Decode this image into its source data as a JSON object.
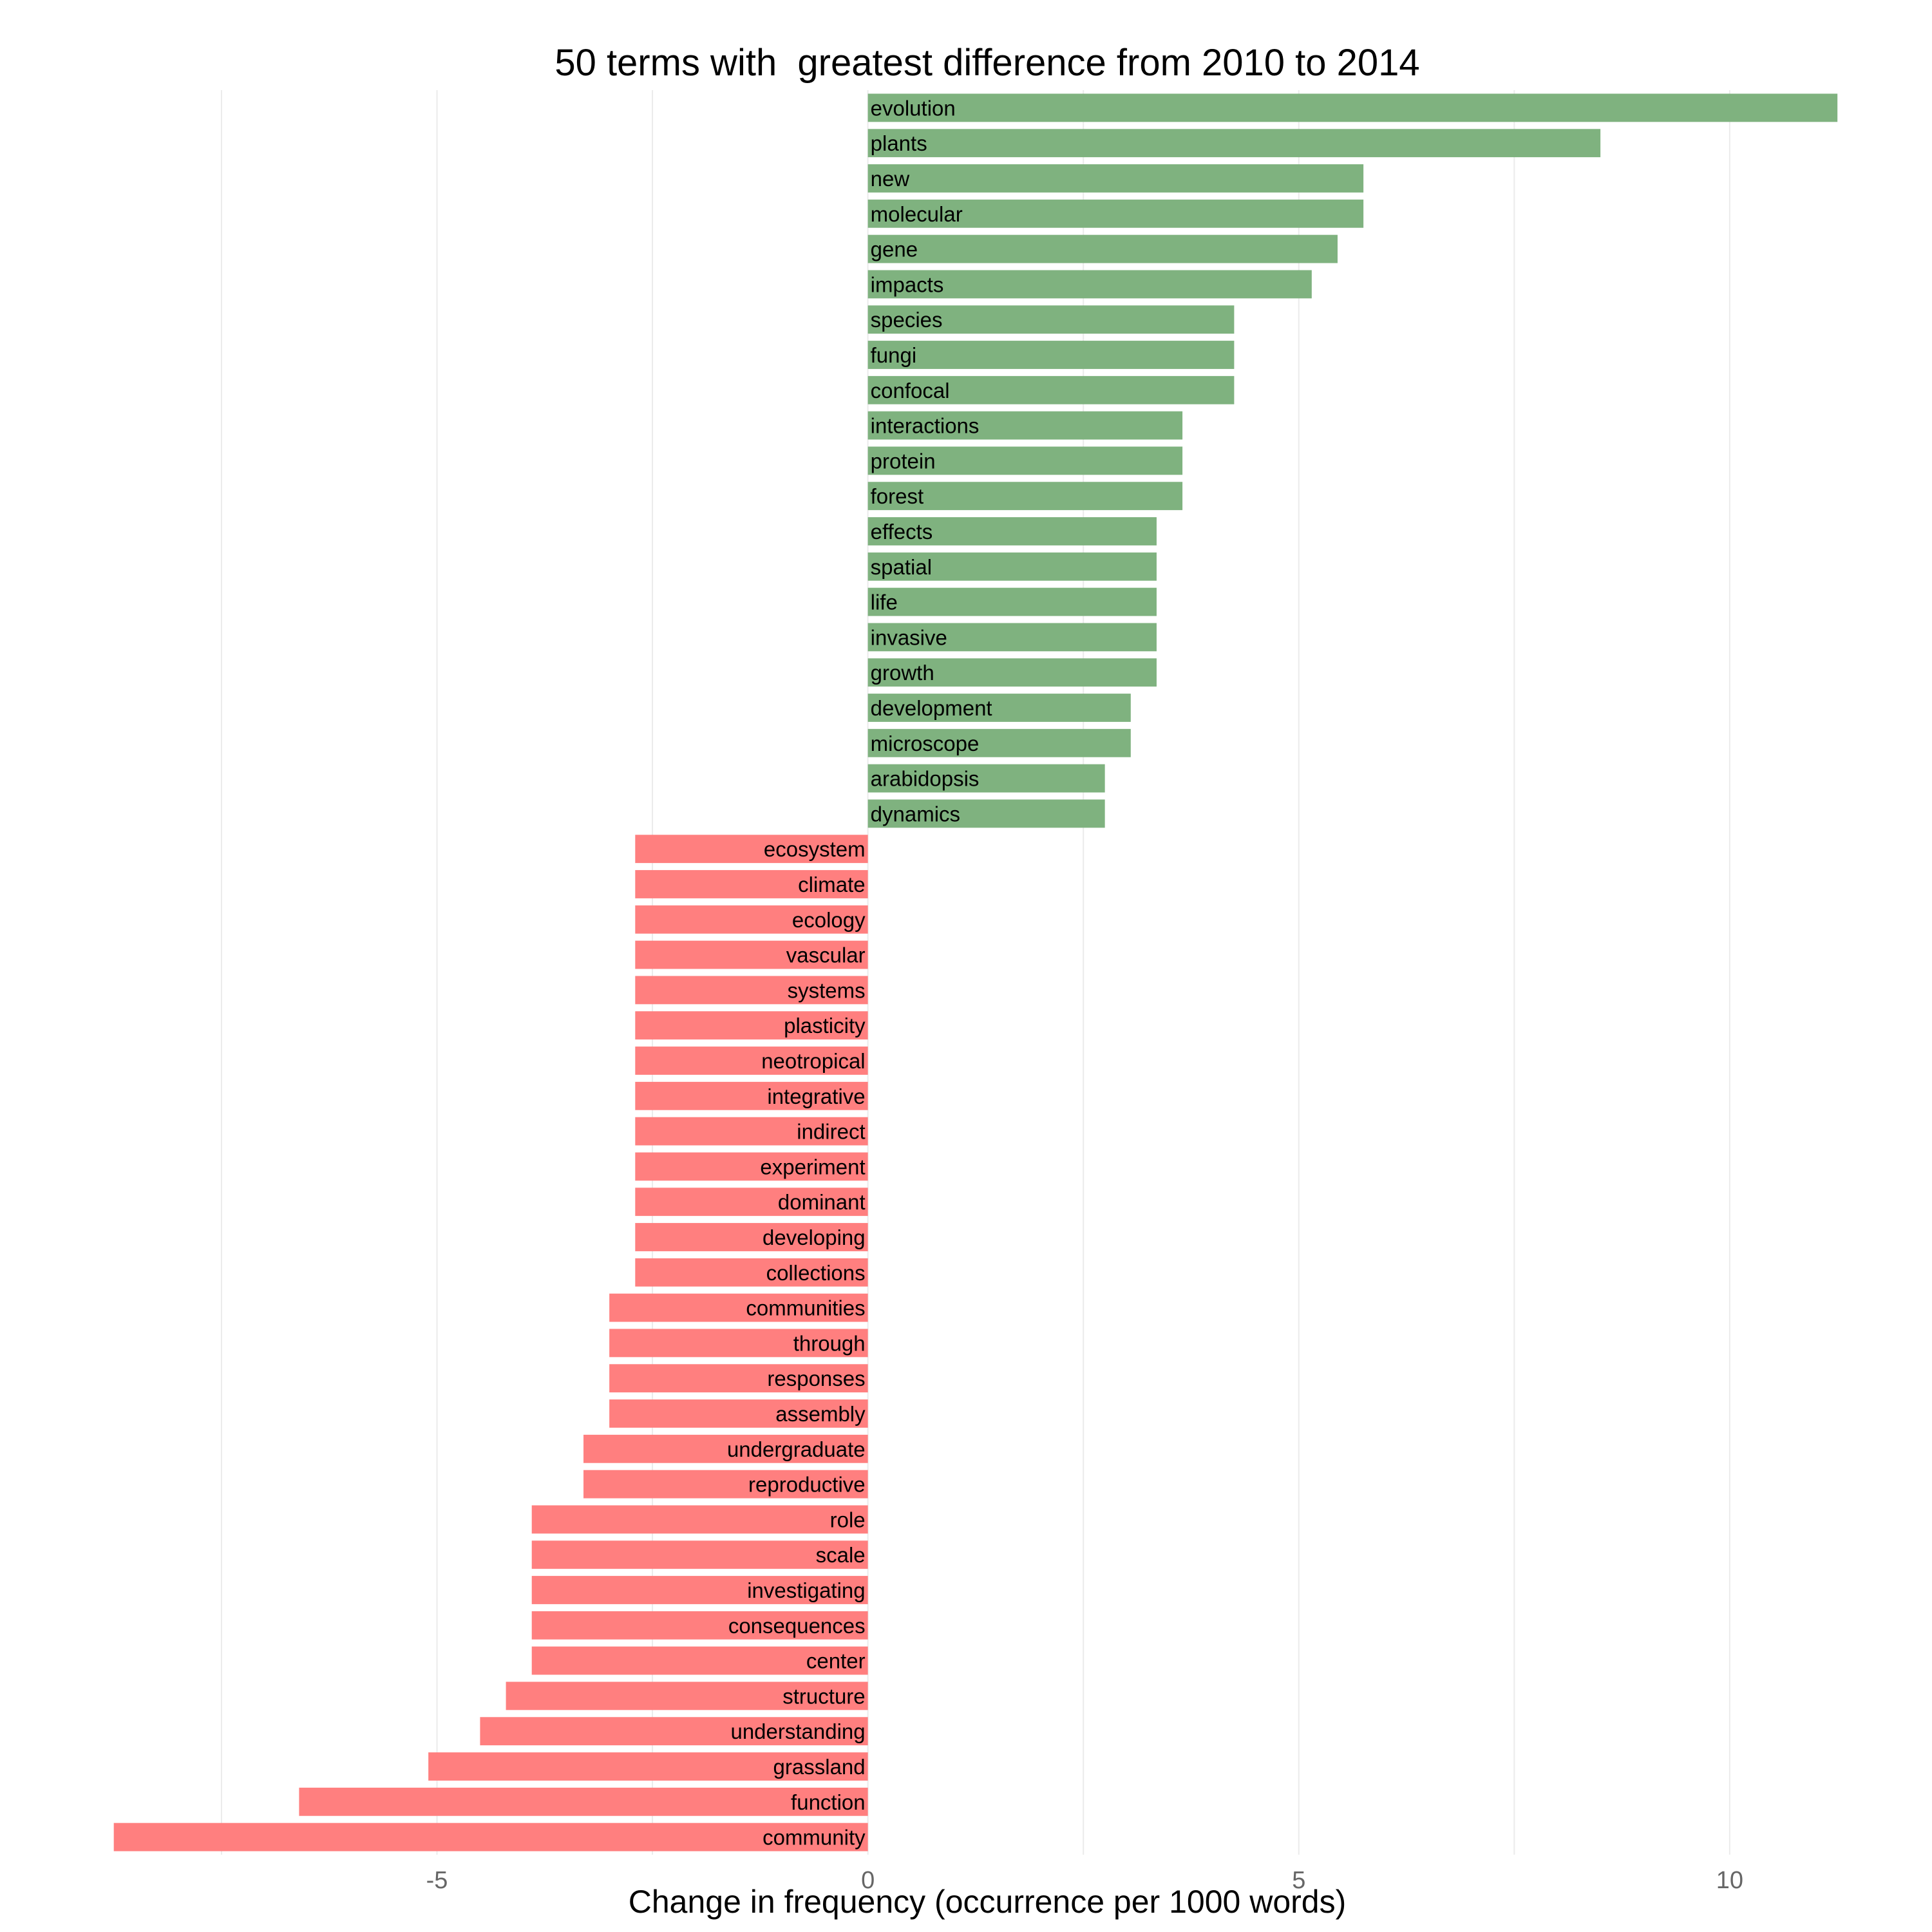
{
  "chart_data": {
    "type": "bar",
    "orientation": "horizontal",
    "title": "50 terms with  greatest difference from 2010 to 2014",
    "xlabel": "Change in frequency (occurrence per 1000 words)",
    "ylabel": "",
    "xlim": [
      -8.8,
      11.6
    ],
    "x_ticks": [
      -5,
      0,
      5,
      10
    ],
    "x_tick_labels": [
      "-5",
      "0",
      "5",
      "10"
    ],
    "grid": true,
    "legend": "none",
    "positive_color": "#7fb27f",
    "negative_color": "#ff7f7f",
    "terms": [
      "evolution",
      "plants",
      "new",
      "molecular",
      "gene",
      "impacts",
      "species",
      "fungi",
      "confocal",
      "interactions",
      "protein",
      "forest",
      "effects",
      "spatial",
      "life",
      "invasive",
      "growth",
      "development",
      "microscope",
      "arabidopsis",
      "dynamics",
      "ecosystem",
      "climate",
      "ecology",
      "vascular",
      "systems",
      "plasticity",
      "neotropical",
      "integrative",
      "indirect",
      "experiment",
      "dominant",
      "developing",
      "collections",
      "communities",
      "through",
      "responses",
      "assembly",
      "undergraduate",
      "reproductive",
      "role",
      "scale",
      "investigating",
      "consequences",
      "center",
      "structure",
      "understanding",
      "grassland",
      "function",
      "community"
    ],
    "values": [
      11.25,
      8.5,
      5.75,
      5.75,
      5.45,
      5.15,
      4.25,
      4.25,
      4.25,
      3.65,
      3.65,
      3.65,
      3.35,
      3.35,
      3.35,
      3.35,
      3.35,
      3.05,
      3.05,
      2.75,
      2.75,
      -2.7,
      -2.7,
      -2.7,
      -2.7,
      -2.7,
      -2.7,
      -2.7,
      -2.7,
      -2.7,
      -2.7,
      -2.7,
      -2.7,
      -2.7,
      -3.0,
      -3.0,
      -3.0,
      -3.0,
      -3.3,
      -3.3,
      -3.9,
      -3.9,
      -3.9,
      -3.9,
      -3.9,
      -4.2,
      -4.5,
      -5.1,
      -6.6,
      -8.75
    ]
  }
}
